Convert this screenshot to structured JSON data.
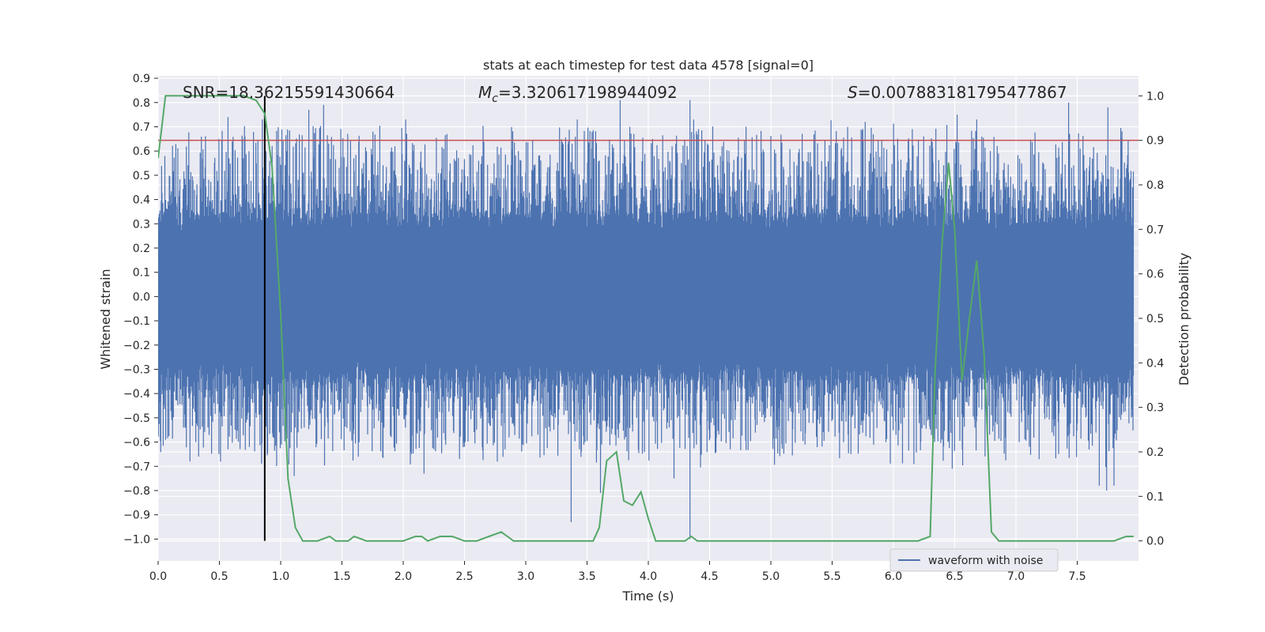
{
  "chart_data": {
    "type": "line",
    "title": "stats at each timestep for test data 4578 [signal=0]",
    "xlabel": "Time (s)",
    "ylabel": "Whitened strain",
    "y2label": "Detection probability",
    "xlim": [
      0.0,
      8.0
    ],
    "ylim": [
      -1.09,
      0.91
    ],
    "y2lim": [
      -0.045,
      1.045
    ],
    "x_ticks": [
      "0.0",
      "0.5",
      "1.0",
      "1.5",
      "2.0",
      "2.5",
      "3.0",
      "3.5",
      "4.0",
      "4.5",
      "5.0",
      "5.5",
      "6.0",
      "6.5",
      "7.0",
      "7.5"
    ],
    "x_tick_values": [
      0.0,
      0.5,
      1.0,
      1.5,
      2.0,
      2.5,
      3.0,
      3.5,
      4.0,
      4.5,
      5.0,
      5.5,
      6.0,
      6.5,
      7.0,
      7.5
    ],
    "y_ticks": [
      "0.9",
      "0.8",
      "0.7",
      "0.6",
      "0.5",
      "0.4",
      "0.3",
      "0.2",
      "0.1",
      "0.0",
      "−0.1",
      "−0.2",
      "−0.3",
      "−0.4",
      "−0.5",
      "−0.6",
      "−0.7",
      "−0.8",
      "−0.9",
      "−1.0"
    ],
    "y_tick_values": [
      0.9,
      0.8,
      0.7,
      0.6,
      0.5,
      0.4,
      0.3,
      0.2,
      0.1,
      0.0,
      -0.1,
      -0.2,
      -0.3,
      -0.4,
      -0.5,
      -0.6,
      -0.7,
      -0.8,
      -0.9,
      -1.0
    ],
    "y2_ticks": [
      "1.0",
      "0.9",
      "0.8",
      "0.7",
      "0.6",
      "0.5",
      "0.4",
      "0.3",
      "0.2",
      "0.1",
      "0.0"
    ],
    "y2_tick_values": [
      1.0,
      0.9,
      0.8,
      0.7,
      0.6,
      0.5,
      0.4,
      0.3,
      0.2,
      0.1,
      0.0
    ],
    "annotations": {
      "snr": "SNR=18.36215591430664",
      "mc_symbol": "M",
      "mc_sub": "c",
      "mc_value": "=3.320617198944092",
      "s_symbol": "S",
      "s_value": "=0.007883181795477867"
    },
    "threshold": 0.9,
    "marker_time": 0.87,
    "legend": [
      "waveform with noise"
    ],
    "legend_position": "lower-right",
    "waveform": {
      "name": "waveform with noise",
      "description_envelope": {
        "core_abs": 0.27,
        "peak_max": 0.81,
        "trough_min": -1.0
      },
      "notable_peaks": [
        [
          0.57,
          0.74
        ],
        [
          0.85,
          0.73
        ],
        [
          1.23,
          0.77
        ],
        [
          1.35,
          0.79
        ],
        [
          2.02,
          0.73
        ],
        [
          3.42,
          0.73
        ],
        [
          3.77,
          0.81
        ],
        [
          4.34,
          0.81
        ],
        [
          4.37,
          0.73
        ],
        [
          5.77,
          0.72
        ],
        [
          6.52,
          0.75
        ],
        [
          6.68,
          0.73
        ],
        [
          7.43,
          0.8
        ],
        [
          7.75,
          0.78
        ]
      ],
      "notable_troughs": [
        [
          0.26,
          -0.68
        ],
        [
          0.57,
          -0.63
        ],
        [
          1.11,
          -0.74
        ],
        [
          2.17,
          -0.73
        ],
        [
          3.37,
          -0.93
        ],
        [
          3.61,
          -0.81
        ],
        [
          4.34,
          -1.0
        ],
        [
          4.21,
          -0.75
        ],
        [
          6.48,
          -0.71
        ],
        [
          7.68,
          -0.78
        ],
        [
          7.74,
          -0.8
        ],
        [
          7.8,
          -0.78
        ]
      ]
    },
    "series": [
      {
        "name": "detection probability",
        "axis": "right",
        "x": [
          0.0,
          0.06,
          0.12,
          0.2,
          0.3,
          0.4,
          0.5,
          0.6,
          0.7,
          0.8,
          0.87,
          0.93,
          1.0,
          1.06,
          1.12,
          1.18,
          1.25,
          1.3,
          1.4,
          1.45,
          1.55,
          1.6,
          1.7,
          1.8,
          1.9,
          2.0,
          2.1,
          2.15,
          2.2,
          2.3,
          2.35,
          2.4,
          2.5,
          2.6,
          2.7,
          2.8,
          2.85,
          2.9,
          3.0,
          3.1,
          3.2,
          3.3,
          3.4,
          3.5,
          3.55,
          3.6,
          3.66,
          3.74,
          3.8,
          3.87,
          3.94,
          4.0,
          4.06,
          4.12,
          4.2,
          4.3,
          4.35,
          4.4,
          4.5,
          4.6,
          4.7,
          4.8,
          4.9,
          5.0,
          5.1,
          5.2,
          5.3,
          5.4,
          5.5,
          5.6,
          5.7,
          5.8,
          5.9,
          6.0,
          6.1,
          6.2,
          6.3,
          6.34,
          6.4,
          6.45,
          6.5,
          6.56,
          6.62,
          6.68,
          6.74,
          6.8,
          6.86,
          6.9,
          7.0,
          7.1,
          7.2,
          7.3,
          7.4,
          7.5,
          7.6,
          7.7,
          7.8,
          7.9,
          7.96
        ],
        "y": [
          0.86,
          1.0,
          1.0,
          1.0,
          1.0,
          1.0,
          1.0,
          1.0,
          1.0,
          0.99,
          0.96,
          0.84,
          0.51,
          0.14,
          0.03,
          0.0,
          0.0,
          0.0,
          0.01,
          0.0,
          0.0,
          0.01,
          0.0,
          0.0,
          0.0,
          0.0,
          0.01,
          0.01,
          0.0,
          0.01,
          0.01,
          0.01,
          0.0,
          0.0,
          0.01,
          0.02,
          0.01,
          0.0,
          0.0,
          0.0,
          0.0,
          0.0,
          0.0,
          0.0,
          0.0,
          0.03,
          0.18,
          0.2,
          0.09,
          0.08,
          0.11,
          0.05,
          0.0,
          0.0,
          0.0,
          0.0,
          0.01,
          0.0,
          0.0,
          0.0,
          0.0,
          0.0,
          0.0,
          0.0,
          0.0,
          0.0,
          0.0,
          0.0,
          0.0,
          0.0,
          0.0,
          0.0,
          0.0,
          0.0,
          0.0,
          0.0,
          0.01,
          0.38,
          0.68,
          0.85,
          0.7,
          0.36,
          0.5,
          0.63,
          0.42,
          0.02,
          0.0,
          0.0,
          0.0,
          0.0,
          0.0,
          0.0,
          0.0,
          0.0,
          0.0,
          0.0,
          0.0,
          0.01,
          0.01
        ]
      }
    ],
    "colors": {
      "background": "#EAEAF2",
      "grid": "#FFFFFF",
      "waveform": "#4C72B0",
      "probability": "#55A868",
      "threshold": "#C44E52",
      "marker": "#000000"
    }
  }
}
